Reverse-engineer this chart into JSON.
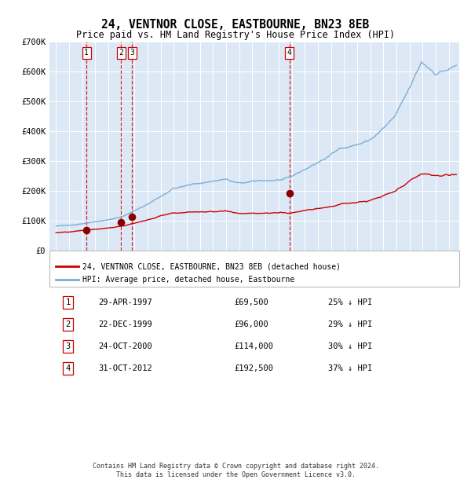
{
  "title": "24, VENTNOR CLOSE, EASTBOURNE, BN23 8EB",
  "subtitle": "Price paid vs. HM Land Registry's House Price Index (HPI)",
  "ylim": [
    0,
    700000
  ],
  "yticks": [
    0,
    100000,
    200000,
    300000,
    400000,
    500000,
    600000,
    700000
  ],
  "ytick_labels": [
    "£0",
    "£100K",
    "£200K",
    "£300K",
    "£400K",
    "£500K",
    "£600K",
    "£700K"
  ],
  "plot_bg_color": "#dce8f5",
  "grid_color": "#ffffff",
  "hpi_line_color": "#7aaed4",
  "price_line_color": "#cc0000",
  "dot_color": "#880000",
  "vline_color": "#cc0000",
  "sales": [
    {
      "num": 1,
      "date": "29-APR-1997",
      "price": 69500,
      "pct": "25%",
      "x_year": 1997.33
    },
    {
      "num": 2,
      "date": "22-DEC-1999",
      "price": 96000,
      "pct": "29%",
      "x_year": 1999.97
    },
    {
      "num": 3,
      "date": "24-OCT-2000",
      "price": 114000,
      "pct": "30%",
      "x_year": 2000.81
    },
    {
      "num": 4,
      "date": "31-OCT-2012",
      "price": 192500,
      "pct": "37%",
      "x_year": 2012.83
    }
  ],
  "legend_line1": "24, VENTNOR CLOSE, EASTBOURNE, BN23 8EB (detached house)",
  "legend_line2": "HPI: Average price, detached house, Eastbourne",
  "footer1": "Contains HM Land Registry data © Crown copyright and database right 2024.",
  "footer2": "This data is licensed under the Open Government Licence v3.0.",
  "xlim_left": 1994.5,
  "xlim_right": 2025.8
}
